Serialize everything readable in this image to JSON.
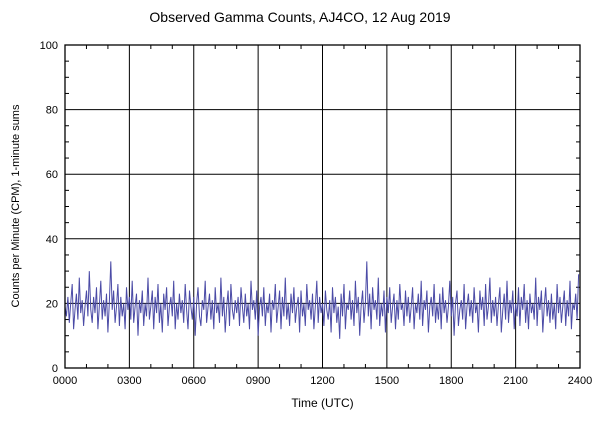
{
  "chart_data": {
    "type": "line",
    "title": "Observed Gamma Counts, AJ4CO, 12 Aug 2019",
    "xlabel": "Time (UTC)",
    "ylabel": "Counts per Minute (CPM), 1-minute sums",
    "xlim": [
      0,
      1440
    ],
    "ylim": [
      0,
      100
    ],
    "xtick_positions": [
      0,
      180,
      360,
      540,
      720,
      900,
      1080,
      1260,
      1440
    ],
    "xtick_labels": [
      "0000",
      "0300",
      "0600",
      "0900",
      "1200",
      "1500",
      "1800",
      "2100",
      "2400"
    ],
    "ytick_values": [
      0,
      20,
      40,
      60,
      80,
      100
    ],
    "ytick_labels": [
      "0",
      "20",
      "40",
      "60",
      "80",
      "100"
    ],
    "minor_x_step": 60,
    "minor_y_step": 5,
    "grid": true,
    "line_color": "#4b4ba6",
    "grid_color": "#000000",
    "axis_color": "#000000",
    "sample_interval_minutes": 4,
    "values": [
      19,
      16,
      22,
      14,
      20,
      26,
      12,
      18,
      23,
      15,
      28,
      17,
      21,
      13,
      19,
      24,
      16,
      30,
      18,
      14,
      22,
      17,
      25,
      12,
      19,
      27,
      15,
      21,
      16,
      23,
      11,
      20,
      33,
      18,
      24,
      14,
      19,
      26,
      13,
      22,
      16,
      20,
      12,
      25,
      18,
      22,
      15,
      27,
      14,
      19,
      23,
      10,
      21,
      17,
      24,
      13,
      20,
      16,
      28,
      15,
      19,
      24,
      12,
      22,
      17,
      26,
      14,
      20,
      11,
      23,
      18,
      25,
      13,
      19,
      22,
      16,
      27,
      12,
      20,
      15,
      23,
      17,
      21,
      14,
      26,
      18,
      12,
      24,
      19,
      15,
      22,
      10,
      20,
      25,
      16,
      13,
      21,
      18,
      27,
      14,
      19,
      23,
      15,
      21,
      12,
      25,
      17,
      20,
      14,
      28,
      16,
      22,
      11,
      19,
      24,
      13,
      26,
      18,
      15,
      21,
      17,
      22,
      13,
      25,
      19,
      14,
      23,
      16,
      20,
      12,
      27,
      18,
      21,
      15,
      24,
      10,
      19,
      22,
      16,
      25,
      13,
      20,
      17,
      23,
      11,
      21,
      18,
      26,
      14,
      19,
      24,
      12,
      22,
      16,
      28,
      15,
      20,
      13,
      23,
      17,
      25,
      14,
      19,
      22,
      11,
      24,
      16,
      20,
      13,
      26,
      18,
      21,
      15,
      23,
      12,
      19,
      27,
      14,
      22,
      17,
      20,
      13,
      24,
      18,
      15,
      21,
      11,
      25,
      17,
      22,
      14,
      19,
      9,
      23,
      16,
      26,
      12,
      20,
      18,
      24,
      15,
      21,
      13,
      27,
      17,
      22,
      10,
      19,
      24,
      14,
      20,
      33,
      16,
      23,
      12,
      25,
      18,
      21,
      15,
      28,
      13,
      20,
      16,
      24,
      11,
      22,
      17,
      25,
      14,
      19,
      23,
      12,
      21,
      15,
      26,
      18,
      20,
      13,
      24,
      16,
      22,
      14,
      19,
      25,
      12,
      20,
      17,
      23,
      15,
      27,
      13,
      21,
      18,
      24,
      11,
      19,
      22,
      16,
      26,
      14,
      20,
      15,
      23,
      12,
      25,
      17,
      21,
      14,
      19,
      27,
      16,
      22,
      10,
      20,
      24,
      13,
      18,
      21,
      15,
      26,
      12,
      19,
      23,
      16,
      21,
      14,
      25,
      17,
      20,
      11,
      24,
      18,
      22,
      13,
      26,
      15,
      19,
      28,
      14,
      21,
      16,
      22,
      13,
      20,
      25,
      11,
      18,
      23,
      15,
      27,
      14,
      21,
      17,
      24,
      12,
      20,
      16,
      25,
      13,
      22,
      18,
      26,
      14,
      21,
      12,
      23,
      17,
      20,
      15,
      28,
      13,
      22,
      18,
      24,
      11,
      19,
      25,
      16,
      21,
      14,
      23,
      15,
      20,
      12,
      26,
      17,
      22,
      14,
      19,
      24,
      13,
      21,
      16,
      27,
      12,
      20,
      18,
      23,
      15,
      29
    ]
  }
}
